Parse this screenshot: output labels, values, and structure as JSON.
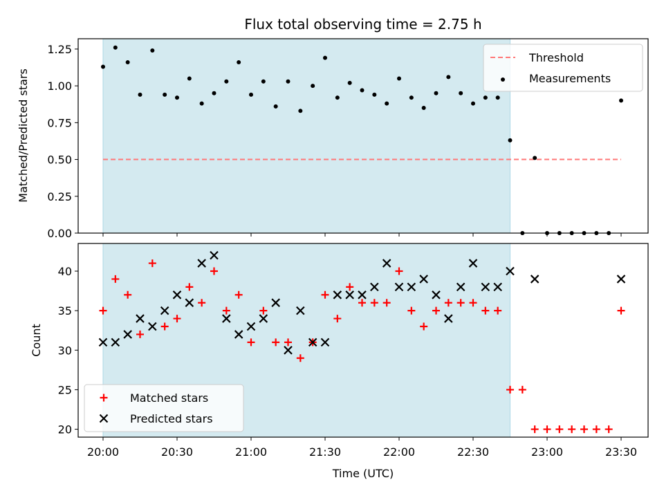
{
  "chart_data": [
    {
      "type": "scatter",
      "title": "Flux total observing time = 2.75 h",
      "xlabel": "",
      "ylabel": "Matched/Predicted stars",
      "ylim": [
        0.0,
        1.32
      ],
      "yticks": [
        "0.00",
        "0.25",
        "0.50",
        "0.75",
        "1.00",
        "1.25"
      ],
      "observing_window": [
        "20:00",
        "22:45"
      ],
      "threshold": {
        "name": "Threshold",
        "value": 0.5,
        "x": [
          "20:00",
          "23:30"
        ],
        "color": "#ff7777",
        "style": "dashed"
      },
      "series": [
        {
          "name": "Measurements",
          "marker": "dot",
          "color": "#000000",
          "points": [
            [
              "20:00",
              1.13
            ],
            [
              "20:05",
              1.26
            ],
            [
              "20:10",
              1.16
            ],
            [
              "20:15",
              0.94
            ],
            [
              "20:20",
              1.24
            ],
            [
              "20:25",
              0.94
            ],
            [
              "20:30",
              0.92
            ],
            [
              "20:35",
              1.05
            ],
            [
              "20:40",
              0.88
            ],
            [
              "20:45",
              0.95
            ],
            [
              "20:50",
              1.03
            ],
            [
              "20:55",
              1.16
            ],
            [
              "21:00",
              0.94
            ],
            [
              "21:05",
              1.03
            ],
            [
              "21:10",
              0.86
            ],
            [
              "21:15",
              1.03
            ],
            [
              "21:20",
              0.83
            ],
            [
              "21:25",
              1.0
            ],
            [
              "21:30",
              1.19
            ],
            [
              "21:35",
              0.92
            ],
            [
              "21:40",
              1.02
            ],
            [
              "21:45",
              0.97
            ],
            [
              "21:50",
              0.94
            ],
            [
              "21:55",
              0.88
            ],
            [
              "22:00",
              1.05
            ],
            [
              "22:05",
              0.92
            ],
            [
              "22:10",
              0.85
            ],
            [
              "22:15",
              0.95
            ],
            [
              "22:20",
              1.06
            ],
            [
              "22:25",
              0.95
            ],
            [
              "22:30",
              0.88
            ],
            [
              "22:35",
              0.92
            ],
            [
              "22:40",
              0.92
            ],
            [
              "22:45",
              0.63
            ],
            [
              "22:50",
              0.0
            ],
            [
              "22:55",
              0.51
            ],
            [
              "23:00",
              0.0
            ],
            [
              "23:05",
              0.0
            ],
            [
              "23:10",
              0.0
            ],
            [
              "23:15",
              0.0
            ],
            [
              "23:20",
              0.0
            ],
            [
              "23:25",
              0.0
            ],
            [
              "23:30",
              0.9
            ]
          ]
        }
      ],
      "legend": "top-right",
      "grid": false
    },
    {
      "type": "scatter",
      "title": "",
      "xlabel": "Time (UTC)",
      "ylabel": "Count",
      "ylim": [
        19,
        43.5
      ],
      "yticks": [
        "20",
        "25",
        "30",
        "35",
        "40"
      ],
      "xticks": [
        "20:00",
        "20:30",
        "21:00",
        "21:30",
        "22:00",
        "22:30",
        "23:00",
        "23:30"
      ],
      "observing_window": [
        "20:00",
        "22:45"
      ],
      "series": [
        {
          "name": "Matched stars",
          "marker": "plus",
          "color": "#ff0000",
          "points": [
            [
              "20:00",
              35
            ],
            [
              "20:05",
              39
            ],
            [
              "20:10",
              37
            ],
            [
              "20:15",
              32
            ],
            [
              "20:20",
              41
            ],
            [
              "20:25",
              33
            ],
            [
              "20:30",
              34
            ],
            [
              "20:35",
              38
            ],
            [
              "20:40",
              36
            ],
            [
              "20:45",
              40
            ],
            [
              "20:50",
              35
            ],
            [
              "20:55",
              37
            ],
            [
              "21:00",
              31
            ],
            [
              "21:05",
              35
            ],
            [
              "21:10",
              31
            ],
            [
              "21:15",
              31
            ],
            [
              "21:20",
              29
            ],
            [
              "21:25",
              31
            ],
            [
              "21:30",
              37
            ],
            [
              "21:35",
              34
            ],
            [
              "21:40",
              38
            ],
            [
              "21:45",
              36
            ],
            [
              "21:50",
              36
            ],
            [
              "21:55",
              36
            ],
            [
              "22:00",
              40
            ],
            [
              "22:05",
              35
            ],
            [
              "22:10",
              33
            ],
            [
              "22:15",
              35
            ],
            [
              "22:20",
              36
            ],
            [
              "22:25",
              36
            ],
            [
              "22:30",
              36
            ],
            [
              "22:35",
              35
            ],
            [
              "22:40",
              35
            ],
            [
              "22:45",
              25
            ],
            [
              "22:50",
              25
            ],
            [
              "22:55",
              20
            ],
            [
              "23:00",
              20
            ],
            [
              "23:05",
              20
            ],
            [
              "23:10",
              20
            ],
            [
              "23:15",
              20
            ],
            [
              "23:20",
              20
            ],
            [
              "23:25",
              20
            ],
            [
              "23:30",
              35
            ]
          ]
        },
        {
          "name": "Predicted stars",
          "marker": "x",
          "color": "#000000",
          "points": [
            [
              "20:00",
              31
            ],
            [
              "20:05",
              31
            ],
            [
              "20:10",
              32
            ],
            [
              "20:15",
              34
            ],
            [
              "20:20",
              33
            ],
            [
              "20:25",
              35
            ],
            [
              "20:30",
              37
            ],
            [
              "20:35",
              36
            ],
            [
              "20:40",
              41
            ],
            [
              "20:45",
              42
            ],
            [
              "20:50",
              34
            ],
            [
              "20:55",
              32
            ],
            [
              "21:00",
              33
            ],
            [
              "21:05",
              34
            ],
            [
              "21:10",
              36
            ],
            [
              "21:15",
              30
            ],
            [
              "21:20",
              35
            ],
            [
              "21:25",
              31
            ],
            [
              "21:30",
              31
            ],
            [
              "21:35",
              37
            ],
            [
              "21:40",
              37
            ],
            [
              "21:45",
              37
            ],
            [
              "21:50",
              38
            ],
            [
              "21:55",
              41
            ],
            [
              "22:00",
              38
            ],
            [
              "22:05",
              38
            ],
            [
              "22:10",
              39
            ],
            [
              "22:15",
              37
            ],
            [
              "22:20",
              34
            ],
            [
              "22:25",
              38
            ],
            [
              "22:30",
              41
            ],
            [
              "22:35",
              38
            ],
            [
              "22:40",
              38
            ],
            [
              "22:45",
              40
            ],
            [
              "22:55",
              39
            ],
            [
              "23:30",
              39
            ]
          ]
        }
      ],
      "legend": "bottom-left",
      "grid": false
    }
  ],
  "colors": {
    "span": "#d4eaf0",
    "span_edge": "#add8e6",
    "threshold": "#ff7777",
    "matched": "#ff0000",
    "predicted": "#000000",
    "measurement": "#000000"
  }
}
